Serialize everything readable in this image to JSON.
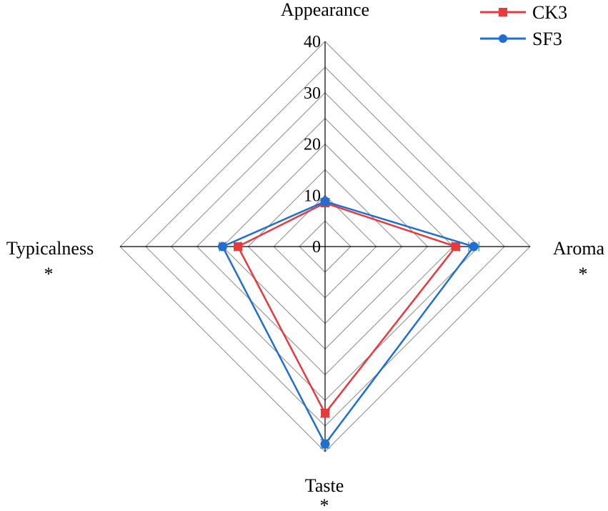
{
  "chart_data": {
    "type": "radar",
    "axes": [
      "Appearance",
      "Aroma",
      "Taste",
      "Typicalness"
    ],
    "axis_marks": [
      "",
      "*",
      "*",
      "*"
    ],
    "range": [
      0,
      40
    ],
    "ticks": [
      "0",
      "10",
      "20",
      "30",
      "40"
    ],
    "tick_values": [
      0,
      10,
      20,
      30,
      40
    ],
    "series": [
      {
        "name": "CK3",
        "color": "#e8393d",
        "marker": "square",
        "values": [
          8.5,
          25.5,
          32.5,
          17
        ],
        "errors": [
          0.6,
          0.8,
          0.8,
          0.6
        ]
      },
      {
        "name": "SF3",
        "color": "#1f6fd1",
        "marker": "circle",
        "values": [
          8.8,
          29,
          38.5,
          20
        ],
        "errors": [
          0.6,
          1.0,
          0.8,
          0.6
        ]
      }
    ],
    "legend_position": "top-right",
    "grid": true
  }
}
